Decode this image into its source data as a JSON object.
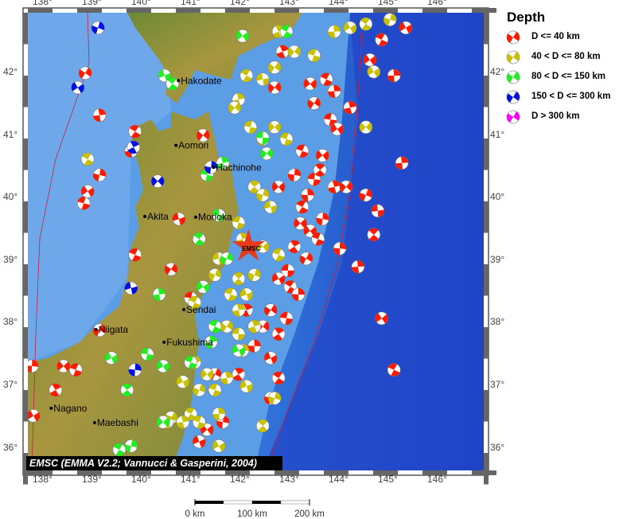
{
  "map": {
    "lon_ticks": [
      "138°",
      "139°",
      "140°",
      "141°",
      "142°",
      "143°",
      "144°",
      "145°",
      "146°"
    ],
    "lat_ticks": [
      "42°",
      "41°",
      "40°",
      "39°",
      "38°",
      "37°",
      "36°"
    ],
    "lon_range": [
      137.7,
      147.0
    ],
    "lat_range": [
      35.65,
      42.95
    ],
    "colors": {
      "land_low": "#4f7a2c",
      "land_high": "#b8a24a",
      "sea_shallow": "#7fb6ea",
      "sea": "#3f86d8",
      "sea_deep": "#1f46c8",
      "trench": "#c02040"
    },
    "cities": [
      {
        "name": "Hakodate",
        "lon": 140.73,
        "lat": 41.87
      },
      {
        "name": "Aomori",
        "lon": 140.68,
        "lat": 40.84
      },
      {
        "name": "Hachinohe",
        "lon": 141.44,
        "lat": 40.49
      },
      {
        "name": "Akita",
        "lon": 140.05,
        "lat": 39.71
      },
      {
        "name": "Morioka",
        "lon": 141.08,
        "lat": 39.7
      },
      {
        "name": "Sendai",
        "lon": 140.84,
        "lat": 38.23
      },
      {
        "name": "Niigata",
        "lon": 139.06,
        "lat": 37.91
      },
      {
        "name": "Fukushima",
        "lon": 140.44,
        "lat": 37.71
      },
      {
        "name": "Nagano",
        "lon": 138.15,
        "lat": 36.66
      },
      {
        "name": "Maebashi",
        "lon": 139.03,
        "lat": 36.43
      }
    ],
    "epicenter": {
      "label": "EMSC",
      "lon": 142.15,
      "lat": 39.23,
      "color": "#e83a1a"
    },
    "events": {
      "d40": [
        [
          142.84,
          42.33
        ],
        [
          143.4,
          41.82
        ],
        [
          143.73,
          41.89
        ],
        [
          143.89,
          41.7
        ],
        [
          143.48,
          41.51
        ],
        [
          143.81,
          41.25
        ],
        [
          144.21,
          41.44
        ],
        [
          144.61,
          42.2
        ],
        [
          144.85,
          42.52
        ],
        [
          145.1,
          41.95
        ],
        [
          145.34,
          42.71
        ],
        [
          143.65,
          40.68
        ],
        [
          143.48,
          40.3
        ],
        [
          143.89,
          40.18
        ],
        [
          143.08,
          40.37
        ],
        [
          142.76,
          40.18
        ],
        [
          143.24,
          39.86
        ],
        [
          143.65,
          39.67
        ],
        [
          143.4,
          39.48
        ],
        [
          143.56,
          39.35
        ],
        [
          143.08,
          39.23
        ],
        [
          143.32,
          39.04
        ],
        [
          142.76,
          38.72
        ],
        [
          143.0,
          38.59
        ],
        [
          143.16,
          38.47
        ],
        [
          142.6,
          38.22
        ],
        [
          142.92,
          38.09
        ],
        [
          142.76,
          37.84
        ],
        [
          142.27,
          37.65
        ],
        [
          142.6,
          37.46
        ],
        [
          142.76,
          37.14
        ],
        [
          141.95,
          37.2
        ],
        [
          141.63,
          36.44
        ],
        [
          141.31,
          36.32
        ],
        [
          144.85,
          38.09
        ],
        [
          145.1,
          37.27
        ],
        [
          145.26,
          40.56
        ],
        [
          144.53,
          40.05
        ],
        [
          144.77,
          39.8
        ],
        [
          144.69,
          39.42
        ],
        [
          144.37,
          38.91
        ],
        [
          144.13,
          40.18
        ],
        [
          142.68,
          41.76
        ],
        [
          143.24,
          40.75
        ],
        [
          139.13,
          40.37
        ],
        [
          138.89,
          40.11
        ],
        [
          138.81,
          39.92
        ],
        [
          139.13,
          41.32
        ],
        [
          138.84,
          41.99
        ],
        [
          139.85,
          41.06
        ],
        [
          139.77,
          40.75
        ],
        [
          139.13,
          37.9
        ],
        [
          138.4,
          37.33
        ],
        [
          138.65,
          37.27
        ],
        [
          138.24,
          36.95
        ],
        [
          137.76,
          37.33
        ],
        [
          137.79,
          36.54
        ],
        [
          140.58,
          38.87
        ],
        [
          140.98,
          38.41
        ],
        [
          139.85,
          39.1
        ],
        [
          141.23,
          41.0
        ],
        [
          140.74,
          39.67
        ],
        [
          142.6,
          36.82
        ],
        [
          141.47,
          37.2
        ],
        [
          141.15,
          36.13
        ],
        [
          142.11,
          38.22
        ],
        [
          142.44,
          37.96
        ],
        [
          143.6,
          40.45
        ],
        [
          143.35,
          40.05
        ],
        [
          143.2,
          39.6
        ],
        [
          142.95,
          38.85
        ],
        [
          144.0,
          39.2
        ],
        [
          143.95,
          41.1
        ]
      ],
      "d80": [
        [
          142.76,
          42.65
        ],
        [
          143.08,
          42.33
        ],
        [
          143.48,
          42.27
        ],
        [
          143.89,
          42.65
        ],
        [
          144.21,
          42.71
        ],
        [
          144.53,
          42.77
        ],
        [
          145.02,
          42.84
        ],
        [
          144.69,
          42.01
        ],
        [
          142.68,
          42.08
        ],
        [
          142.44,
          41.89
        ],
        [
          142.11,
          41.95
        ],
        [
          141.95,
          41.57
        ],
        [
          141.87,
          41.44
        ],
        [
          142.19,
          41.13
        ],
        [
          142.44,
          40.94
        ],
        [
          142.68,
          41.13
        ],
        [
          142.92,
          40.94
        ],
        [
          142.27,
          40.18
        ],
        [
          142.44,
          40.05
        ],
        [
          142.6,
          39.86
        ],
        [
          141.95,
          39.61
        ],
        [
          142.03,
          39.35
        ],
        [
          142.44,
          39.23
        ],
        [
          142.76,
          39.1
        ],
        [
          141.95,
          38.72
        ],
        [
          142.27,
          38.78
        ],
        [
          142.11,
          38.47
        ],
        [
          141.79,
          38.47
        ],
        [
          141.95,
          38.22
        ],
        [
          141.71,
          37.96
        ],
        [
          141.95,
          37.84
        ],
        [
          142.27,
          37.96
        ],
        [
          141.06,
          37.39
        ],
        [
          141.31,
          37.2
        ],
        [
          141.47,
          36.95
        ],
        [
          141.71,
          37.14
        ],
        [
          141.15,
          36.95
        ],
        [
          140.82,
          37.08
        ],
        [
          140.98,
          36.57
        ],
        [
          140.82,
          36.44
        ],
        [
          140.58,
          36.51
        ],
        [
          141.15,
          36.44
        ],
        [
          141.55,
          36.57
        ],
        [
          142.11,
          37.01
        ],
        [
          142.44,
          36.38
        ],
        [
          142.68,
          36.82
        ],
        [
          141.47,
          38.78
        ],
        [
          141.55,
          39.04
        ],
        [
          141.06,
          38.34
        ],
        [
          140.5,
          36.44
        ],
        [
          141.55,
          36.06
        ],
        [
          144.53,
          41.13
        ],
        [
          142.03,
          37.58
        ],
        [
          138.89,
          40.62
        ]
      ],
      "d150": [
        [
          140.45,
          41.95
        ],
        [
          140.61,
          41.82
        ],
        [
          142.03,
          42.58
        ],
        [
          141.55,
          39.73
        ],
        [
          141.15,
          39.35
        ],
        [
          141.71,
          39.04
        ],
        [
          141.23,
          38.59
        ],
        [
          141.47,
          37.96
        ],
        [
          141.39,
          37.71
        ],
        [
          141.95,
          37.58
        ],
        [
          140.42,
          37.33
        ],
        [
          140.1,
          37.52
        ],
        [
          139.69,
          36.95
        ],
        [
          139.77,
          36.06
        ],
        [
          140.98,
          37.39
        ],
        [
          142.52,
          40.71
        ],
        [
          142.44,
          40.96
        ],
        [
          141.31,
          40.37
        ],
        [
          141.63,
          40.56
        ],
        [
          140.34,
          38.47
        ],
        [
          140.42,
          36.44
        ],
        [
          139.37,
          37.46
        ],
        [
          139.53,
          36.0
        ],
        [
          142.92,
          42.65
        ]
      ],
      "d300": [
        [
          139.1,
          42.71
        ],
        [
          138.69,
          41.76
        ],
        [
          139.82,
          40.81
        ],
        [
          140.31,
          40.27
        ],
        [
          139.77,
          38.57
        ],
        [
          141.39,
          40.49
        ],
        [
          139.85,
          37.27
        ]
      ],
      "d300plus": []
    }
  },
  "legend": {
    "title": "Depth",
    "items": [
      {
        "id": "d40",
        "label": "D <= 40 km",
        "color": "#ff1a00"
      },
      {
        "id": "d80",
        "label": "40 < D <= 80 km",
        "color": "#c8c000"
      },
      {
        "id": "d150",
        "label": "80 < D <= 150 km",
        "color": "#22ee22"
      },
      {
        "id": "d300",
        "label": "150 < D <= 300 km",
        "color": "#0010e0"
      },
      {
        "id": "d300plus",
        "label": "D > 300 km",
        "color": "#ff00ff"
      }
    ]
  },
  "credit": "EMSC (EMMA V2.2; Vannucci & Gasperini, 2004)",
  "scale_bar": {
    "labels": [
      "0 km",
      "100 km",
      "200 km"
    ]
  }
}
